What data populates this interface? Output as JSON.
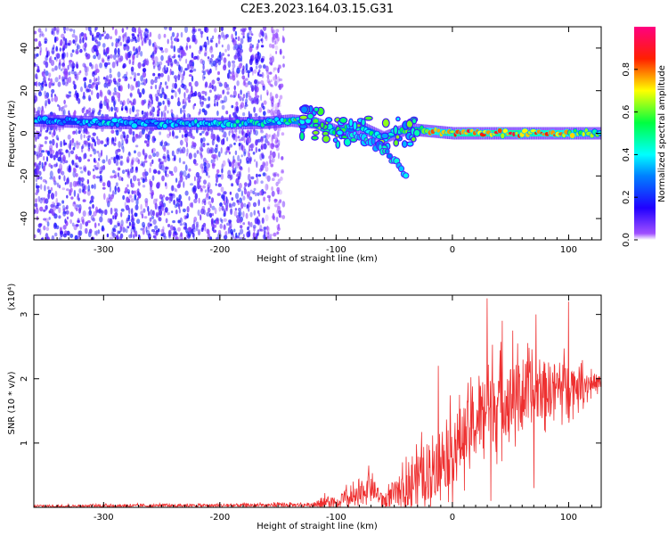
{
  "figure": {
    "title": "C2E3.2023.164.03.15.G31"
  },
  "chart_data": [
    {
      "type": "heatmap",
      "xlabel": "Height of straight line (km)",
      "ylabel": "Frequency (Hz)",
      "xlim": [
        -360,
        128
      ],
      "ylim": [
        -50,
        50
      ],
      "xticks": [
        "-300",
        "-200",
        "-100",
        "0",
        "100"
      ],
      "xtick_values": [
        -300,
        -200,
        -100,
        0,
        100
      ],
      "yticks": [
        "-40",
        "-20",
        "0",
        "20",
        "40"
      ],
      "ytick_values": [
        -40,
        -20,
        0,
        20,
        40
      ],
      "colorbar": {
        "label": "Normalized spectral amplitude",
        "range": [
          0,
          1
        ],
        "ticks": [
          "0.0",
          "0.2",
          "0.4",
          "0.6",
          "0.8"
        ],
        "tick_values": [
          0.0,
          0.2,
          0.4,
          0.6,
          0.8
        ],
        "colors": [
          "#ffffff",
          "#7f00ff",
          "#0000ff",
          "#00ffff",
          "#00ff00",
          "#ffff00",
          "#ff0000",
          "#ff0080"
        ]
      },
      "noise_region": {
        "x": [
          -360,
          -160
        ],
        "amplitude": 0.15
      },
      "signal_track": [
        {
          "x": -360,
          "y": 6,
          "amplitude": 0.35
        },
        {
          "x": -300,
          "y": 5,
          "amplitude": 0.4
        },
        {
          "x": -250,
          "y": 4.5,
          "amplitude": 0.4
        },
        {
          "x": -200,
          "y": 4.5,
          "amplitude": 0.45
        },
        {
          "x": -160,
          "y": 5,
          "amplitude": 0.45
        },
        {
          "x": -140,
          "y": 6,
          "amplitude": 0.55
        },
        {
          "x": -120,
          "y": 5,
          "amplitude": 0.6
        },
        {
          "x": -100,
          "y": 1,
          "amplitude": 0.55
        },
        {
          "x": -80,
          "y": 3,
          "amplitude": 0.5
        },
        {
          "x": -60,
          "y": -2,
          "amplitude": 0.5
        },
        {
          "x": -40,
          "y": 2,
          "amplitude": 0.55
        },
        {
          "x": -20,
          "y": 1,
          "amplitude": 0.75
        },
        {
          "x": 0,
          "y": 0,
          "amplitude": 0.85
        },
        {
          "x": 20,
          "y": 0,
          "amplitude": 0.9
        },
        {
          "x": 40,
          "y": 0,
          "amplitude": 0.85
        },
        {
          "x": 60,
          "y": 0,
          "amplitude": 0.85
        },
        {
          "x": 80,
          "y": 0,
          "amplitude": 0.8
        },
        {
          "x": 100,
          "y": 0,
          "amplitude": 0.75
        },
        {
          "x": 128,
          "y": 0,
          "amplitude": 0.55
        }
      ],
      "branch": [
        {
          "x": -90,
          "y": 0
        },
        {
          "x": -70,
          "y": -4
        },
        {
          "x": -55,
          "y": -10
        },
        {
          "x": -45,
          "y": -16
        },
        {
          "x": -40,
          "y": -20
        }
      ]
    },
    {
      "type": "line",
      "xlabel": "Height of straight line (km)",
      "ylabel": "SNR (10 * v/v)",
      "scale_label": "(x10⁴)",
      "xlim": [
        -360,
        128
      ],
      "ylim": [
        0,
        3.3
      ],
      "xticks": [
        "-300",
        "-200",
        "-100",
        "0",
        "100"
      ],
      "xtick_values": [
        -300,
        -200,
        -100,
        0,
        100
      ],
      "yticks": [
        "1",
        "2",
        "3"
      ],
      "ytick_values": [
        1,
        2,
        3
      ],
      "color": "#ee3030",
      "envelope": [
        {
          "x": -360,
          "base": 0.02,
          "spread": 0.03
        },
        {
          "x": -200,
          "base": 0.03,
          "spread": 0.04
        },
        {
          "x": -120,
          "base": 0.04,
          "spread": 0.05
        },
        {
          "x": -110,
          "base": 0.08,
          "spread": 0.15
        },
        {
          "x": -80,
          "base": 0.15,
          "spread": 0.3
        },
        {
          "x": -72,
          "base": 0.35,
          "spread": 0.3
        },
        {
          "x": -60,
          "base": 0.1,
          "spread": 0.15
        },
        {
          "x": -40,
          "base": 0.3,
          "spread": 0.5
        },
        {
          "x": -20,
          "base": 0.6,
          "spread": 0.8
        },
        {
          "x": 0,
          "base": 0.9,
          "spread": 0.9
        },
        {
          "x": 20,
          "base": 1.3,
          "spread": 0.8
        },
        {
          "x": 30,
          "base": 1.6,
          "spread": 1.1
        },
        {
          "x": 50,
          "base": 1.7,
          "spread": 0.9
        },
        {
          "x": 70,
          "base": 1.8,
          "spread": 0.8
        },
        {
          "x": 100,
          "base": 1.9,
          "spread": 0.6
        },
        {
          "x": 128,
          "base": 1.95,
          "spread": 0.15
        }
      ],
      "peaks": [
        {
          "x": 30,
          "y": 3.25
        },
        {
          "x": 100,
          "y": 3.2
        },
        {
          "x": 72,
          "y": 3.0
        },
        {
          "x": 43,
          "y": 2.9
        },
        {
          "x": 52,
          "y": 2.75
        },
        {
          "x": -12,
          "y": 2.2
        },
        {
          "x": 33,
          "y": 0.1
        },
        {
          "x": 70,
          "y": 0.3
        },
        {
          "x": -72,
          "y": 0.65
        }
      ]
    }
  ]
}
